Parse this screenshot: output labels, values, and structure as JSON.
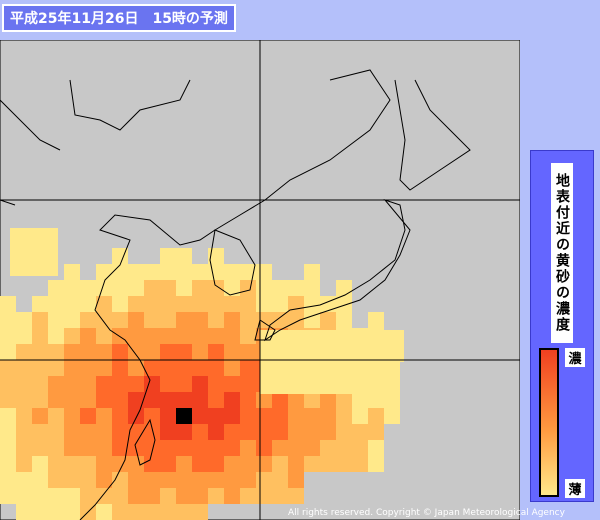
{
  "header": {
    "title": "平成25年11月26日　15時の予測"
  },
  "legend": {
    "title": "地表付近の黄砂の濃度",
    "high": "濃",
    "low": "薄"
  },
  "footer": {
    "copyright": "All rights reserved. Copyright © Japan Meteorological Agency"
  }
}
